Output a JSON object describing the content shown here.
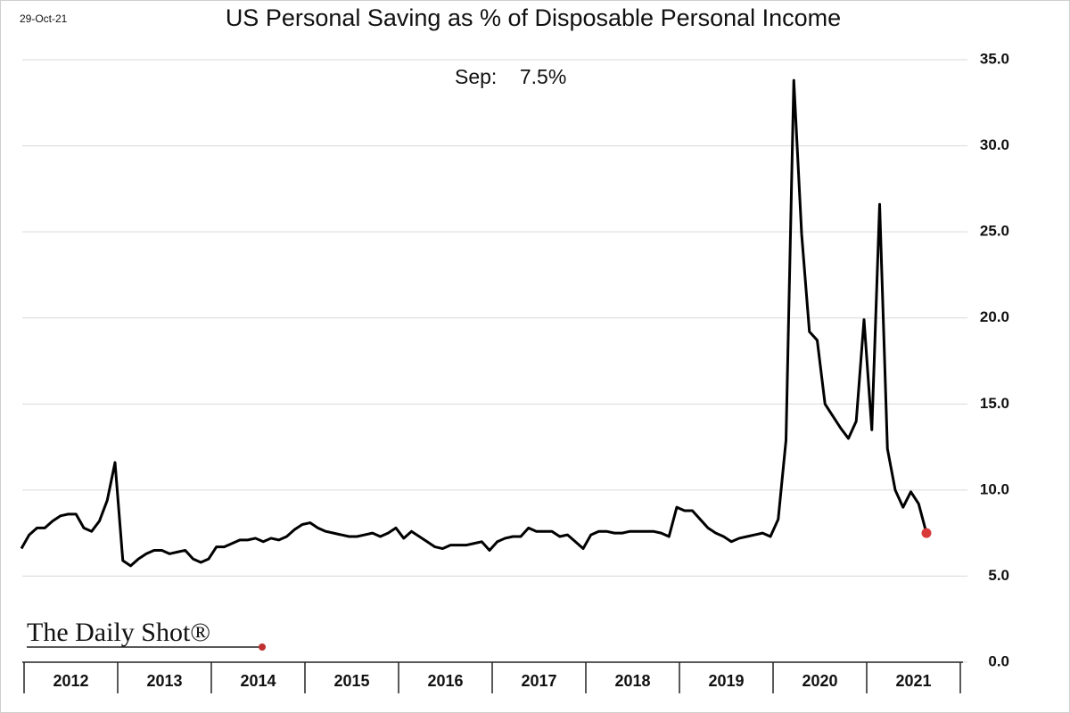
{
  "chart_data": {
    "type": "line",
    "title": "US Personal Saving as % of Disposable Personal Income",
    "date": "29-Oct-21",
    "annotation": "Sep:    7.5%",
    "source": "The Daily Shot®",
    "categories": [
      "2012",
      null,
      null,
      null,
      null,
      null,
      null,
      null,
      null,
      null,
      null,
      null,
      "2013",
      null,
      null,
      null,
      null,
      null,
      null,
      null,
      null,
      null,
      null,
      null,
      "2014",
      null,
      null,
      null,
      null,
      null,
      null,
      null,
      null,
      null,
      null,
      null,
      "2015",
      null,
      null,
      null,
      null,
      null,
      null,
      null,
      null,
      null,
      null,
      null,
      "2016",
      null,
      null,
      null,
      null,
      null,
      null,
      null,
      null,
      null,
      null,
      null,
      "2017",
      null,
      null,
      null,
      null,
      null,
      null,
      null,
      null,
      null,
      null,
      null,
      "2018",
      null,
      null,
      null,
      null,
      null,
      null,
      null,
      null,
      null,
      null,
      null,
      "2019",
      null,
      null,
      null,
      null,
      null,
      null,
      null,
      null,
      null,
      null,
      null,
      "2020",
      null,
      null,
      null,
      null,
      null,
      null,
      null,
      null,
      null,
      null,
      null,
      "2021",
      null,
      null,
      null,
      null,
      null,
      null,
      null,
      null
    ],
    "series": [
      {
        "color": "#000000",
        "highlight_color": "#d93a3a",
        "values": [
          6.6,
          7.4,
          7.8,
          7.8,
          8.2,
          8.5,
          8.6,
          8.6,
          7.8,
          7.6,
          8.2,
          9.4,
          11.6,
          5.9,
          5.6,
          6.0,
          6.3,
          6.5,
          6.5,
          6.3,
          6.4,
          6.5,
          6.0,
          5.8,
          6.0,
          6.7,
          6.7,
          6.9,
          7.1,
          7.1,
          7.2,
          7.0,
          7.2,
          7.1,
          7.3,
          7.7,
          8.0,
          8.1,
          7.8,
          7.6,
          7.5,
          7.4,
          7.3,
          7.3,
          7.4,
          7.5,
          7.3,
          7.5,
          7.8,
          7.2,
          7.6,
          7.3,
          7.0,
          6.7,
          6.6,
          6.8,
          6.8,
          6.8,
          6.9,
          7.0,
          6.5,
          7.0,
          7.2,
          7.3,
          7.3,
          7.8,
          7.6,
          7.6,
          7.6,
          7.3,
          7.4,
          7.0,
          6.6,
          7.4,
          7.6,
          7.6,
          7.5,
          7.5,
          7.6,
          7.6,
          7.6,
          7.6,
          7.5,
          7.3,
          9.0,
          8.8,
          8.8,
          8.3,
          7.8,
          7.5,
          7.3,
          7.0,
          7.2,
          7.3,
          7.4,
          7.5,
          7.3,
          8.3,
          12.9,
          33.8,
          24.9,
          19.2,
          18.7,
          15.0,
          14.3,
          13.6,
          13.0,
          14.0,
          19.9,
          13.5,
          26.6,
          12.4,
          10.0,
          9.0,
          9.9,
          9.2,
          7.5
        ]
      }
    ],
    "ylim": [
      0,
      35
    ],
    "yticks": [
      {
        "value": 0,
        "label": "0.0"
      },
      {
        "value": 5,
        "label": "5.0"
      },
      {
        "value": 10,
        "label": "10.0"
      },
      {
        "value": 15,
        "label": "15.0"
      },
      {
        "value": 20,
        "label": "20.0"
      },
      {
        "value": 25,
        "label": "25.0"
      },
      {
        "value": 30,
        "label": "30.0"
      },
      {
        "value": 35,
        "label": "35.0"
      }
    ],
    "grid": true
  }
}
